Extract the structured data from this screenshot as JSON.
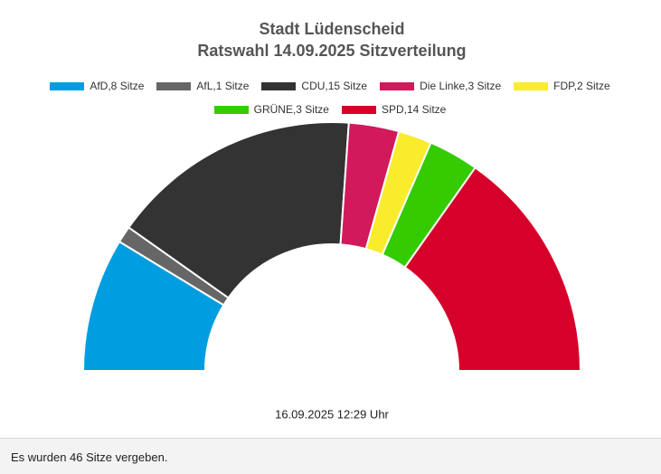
{
  "chart_data": {
    "type": "semi-donut",
    "title": "Stadt Lüdenscheid",
    "subtitle": "Ratswahl 14.09.2025 Sitzverteilung",
    "categories": [
      "AfD,8 Sitze",
      "AfL,1 Sitze",
      "CDU,15 Sitze",
      "Die Linke,3 Sitze",
      "FDP,2 Sitze",
      "GRÜNE,3 Sitze",
      "SPD,14 Sitze"
    ],
    "values": [
      8,
      1,
      15,
      3,
      2,
      3,
      14
    ],
    "colors": [
      "#009ee0",
      "#666666",
      "#333333",
      "#d1195b",
      "#f9ec2d",
      "#34cc00",
      "#d7002a"
    ],
    "annotation": "16.09.2025 12:29 Uhr"
  },
  "status_text": "Es wurden 46 Sitze vergeben."
}
